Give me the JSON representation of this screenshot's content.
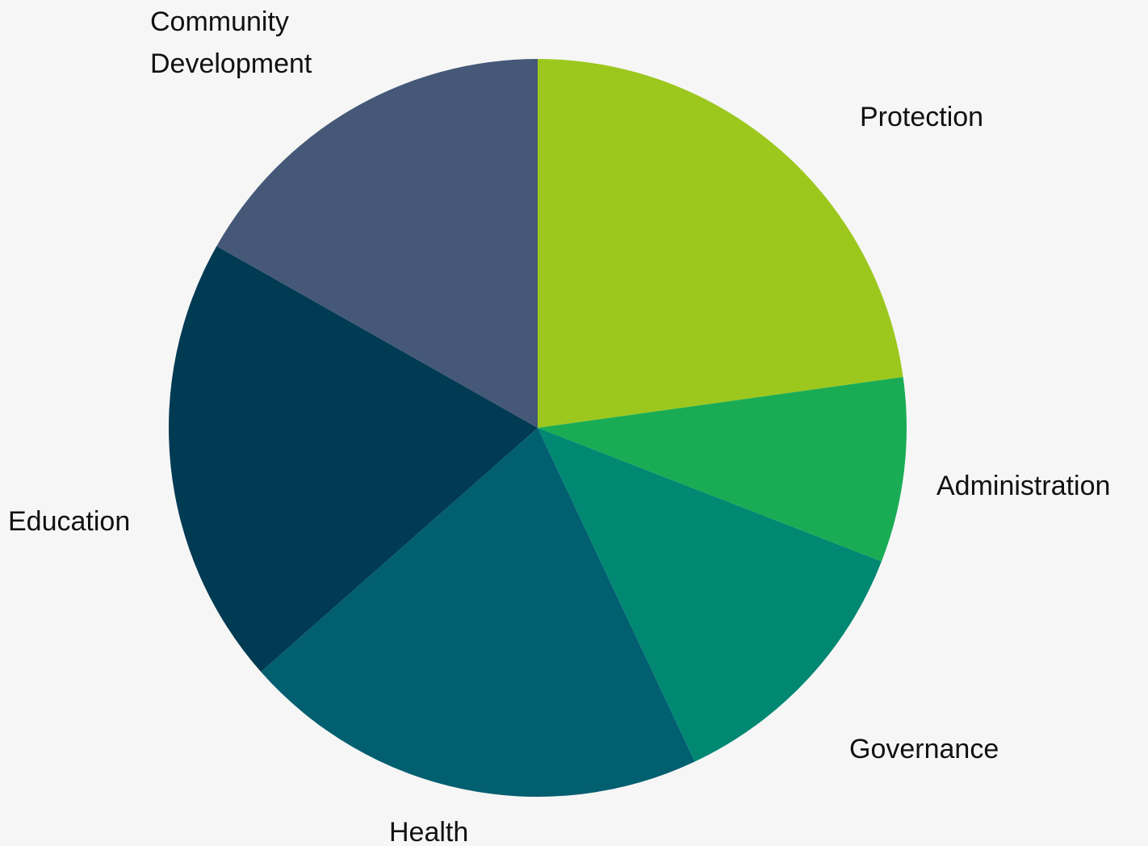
{
  "chart_data": {
    "type": "pie",
    "title": "",
    "legend": "none",
    "start": "12 o'clock, clockwise",
    "slices": [
      {
        "name": "Protection",
        "value": 22.8,
        "color": "#9cc81e"
      },
      {
        "name": "Administration",
        "value": 8.1,
        "color": "#19ac55"
      },
      {
        "name": "Governance",
        "value": 12.1,
        "color": "#008873"
      },
      {
        "name": "Health",
        "value": 20.5,
        "color": "#025f70"
      },
      {
        "name": "Education",
        "value": 19.7,
        "color": "#003a53"
      },
      {
        "name": "Community Development",
        "value": 16.8,
        "color": "#455878"
      }
    ]
  }
}
